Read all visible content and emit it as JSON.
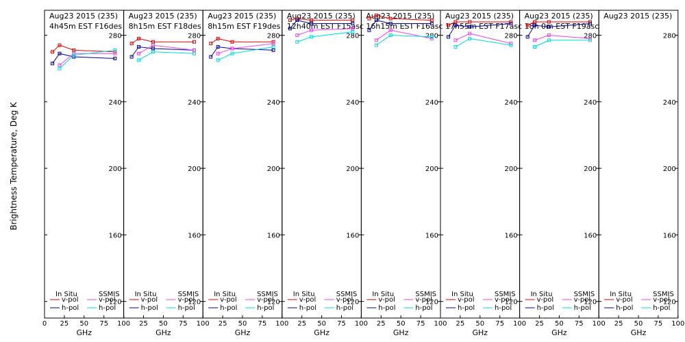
{
  "ylabel": "Brightness Temperature, Deg K",
  "xlabel": "GHz",
  "ylim": [
    110,
    295
  ],
  "xlim": [
    0,
    100
  ],
  "yticks": [
    120,
    160,
    200,
    240,
    280
  ],
  "xticks": [
    0,
    25,
    50,
    75,
    100
  ],
  "xtick_labels": [
    "0",
    "25",
    "50",
    "75",
    "100"
  ],
  "ytick_labels": [
    "120",
    "160",
    "200",
    "240",
    "280"
  ],
  "legend": {
    "in_situ_title": "In Situ",
    "ssmis_title": "SSMIS",
    "v_pol": "v-pol",
    "h_pol": "h-pol"
  },
  "colors": {
    "insitu_v": "#dd0000",
    "insitu_h": "#000099",
    "ssmis_v": "#ee44ee",
    "ssmis_h": "#00dddd"
  },
  "chart_data": [
    {
      "type": "line",
      "title": "Aug23 2015 (235)",
      "subtitle": "4h45m EST F16des",
      "x": [
        10,
        19,
        37,
        89
      ],
      "series": [
        {
          "name": "In Situ v-pol",
          "values": [
            270,
            274,
            271,
            270
          ]
        },
        {
          "name": "In Situ h-pol",
          "values": [
            263,
            269,
            267,
            266
          ]
        },
        {
          "name": "SSMIS v-pol",
          "values": [
            null,
            262,
            269,
            269
          ]
        },
        {
          "name": "SSMIS h-pol",
          "values": [
            null,
            260,
            268,
            271
          ]
        }
      ]
    },
    {
      "type": "line",
      "title": "Aug23 2015 (235)",
      "subtitle": "8h15m EST F18des",
      "x": [
        10,
        19,
        37,
        89
      ],
      "series": [
        {
          "name": "In Situ v-pol",
          "values": [
            275,
            278,
            276,
            276
          ]
        },
        {
          "name": "In Situ h-pol",
          "values": [
            267,
            273,
            272,
            271
          ]
        },
        {
          "name": "SSMIS v-pol",
          "values": [
            null,
            269,
            274,
            271
          ]
        },
        {
          "name": "SSMIS h-pol",
          "values": [
            null,
            265,
            270,
            269
          ]
        }
      ]
    },
    {
      "type": "line",
      "title": "Aug23 2015 (235)",
      "subtitle": "8h15m EST F19des",
      "x": [
        10,
        19,
        37,
        89
      ],
      "series": [
        {
          "name": "In Situ v-pol",
          "values": [
            275,
            278,
            276,
            276
          ]
        },
        {
          "name": "In Situ h-pol",
          "values": [
            267,
            273,
            272,
            271
          ]
        },
        {
          "name": "SSMIS v-pol",
          "values": [
            null,
            269,
            272,
            275
          ]
        },
        {
          "name": "SSMIS h-pol",
          "values": [
            null,
            265,
            269,
            273
          ]
        }
      ]
    },
    {
      "type": "line",
      "title": "Aug23 2015 (235)",
      "subtitle": "12h40m EST F15asc",
      "x": [
        10,
        19,
        37,
        89
      ],
      "series": [
        {
          "name": "In Situ v-pol",
          "values": [
            289,
            290,
            289,
            289
          ]
        },
        {
          "name": "In Situ h-pol",
          "values": [
            284,
            289,
            287,
            287
          ]
        },
        {
          "name": "SSMIS v-pol",
          "values": [
            null,
            280,
            283,
            284
          ]
        },
        {
          "name": "SSMIS h-pol",
          "values": [
            null,
            276,
            279,
            282
          ]
        }
      ]
    },
    {
      "type": "line",
      "title": "Aug23 2015 (235)",
      "subtitle": "16h15m EST F16asc",
      "x": [
        10,
        19,
        37,
        89
      ],
      "series": [
        {
          "name": "In Situ v-pol",
          "values": [
            290,
            292,
            290,
            289
          ]
        },
        {
          "name": "In Situ h-pol",
          "values": [
            283,
            289,
            287,
            287
          ]
        },
        {
          "name": "SSMIS v-pol",
          "values": [
            null,
            277,
            283,
            278
          ]
        },
        {
          "name": "SSMIS h-pol",
          "values": [
            null,
            274,
            280,
            279
          ]
        }
      ]
    },
    {
      "type": "line",
      "title": "Aug23 2015 (235)",
      "subtitle": "17h55m EST F17asc",
      "x": [
        10,
        19,
        37,
        89
      ],
      "series": [
        {
          "name": "In Situ v-pol",
          "values": [
            286,
            288,
            288,
            288
          ]
        },
        {
          "name": "In Situ h-pol",
          "values": [
            279,
            286,
            285,
            287
          ]
        },
        {
          "name": "SSMIS v-pol",
          "values": [
            null,
            277,
            281,
            275
          ]
        },
        {
          "name": "SSMIS h-pol",
          "values": [
            null,
            273,
            278,
            274
          ]
        }
      ]
    },
    {
      "type": "line",
      "title": "Aug23 2015 (235)",
      "subtitle": "18h 0m EST F19asc",
      "x": [
        10,
        19,
        37,
        89
      ],
      "series": [
        {
          "name": "In Situ v-pol",
          "values": [
            286,
            288,
            288,
            288
          ]
        },
        {
          "name": "In Situ h-pol",
          "values": [
            279,
            286,
            285,
            287
          ]
        },
        {
          "name": "SSMIS v-pol",
          "values": [
            null,
            277,
            280,
            278
          ]
        },
        {
          "name": "SSMIS h-pol",
          "values": [
            null,
            273,
            277,
            277
          ]
        }
      ]
    },
    {
      "type": "line",
      "title": "Aug23 2015 (235)",
      "subtitle": "",
      "x": [
        10,
        19,
        37,
        89
      ],
      "series": [
        {
          "name": "In Situ v-pol",
          "values": [
            null,
            null,
            null,
            null
          ]
        },
        {
          "name": "In Situ h-pol",
          "values": [
            null,
            null,
            null,
            null
          ]
        },
        {
          "name": "SSMIS v-pol",
          "values": [
            null,
            null,
            null,
            null
          ]
        },
        {
          "name": "SSMIS h-pol",
          "values": [
            null,
            null,
            null,
            null
          ]
        }
      ]
    }
  ]
}
